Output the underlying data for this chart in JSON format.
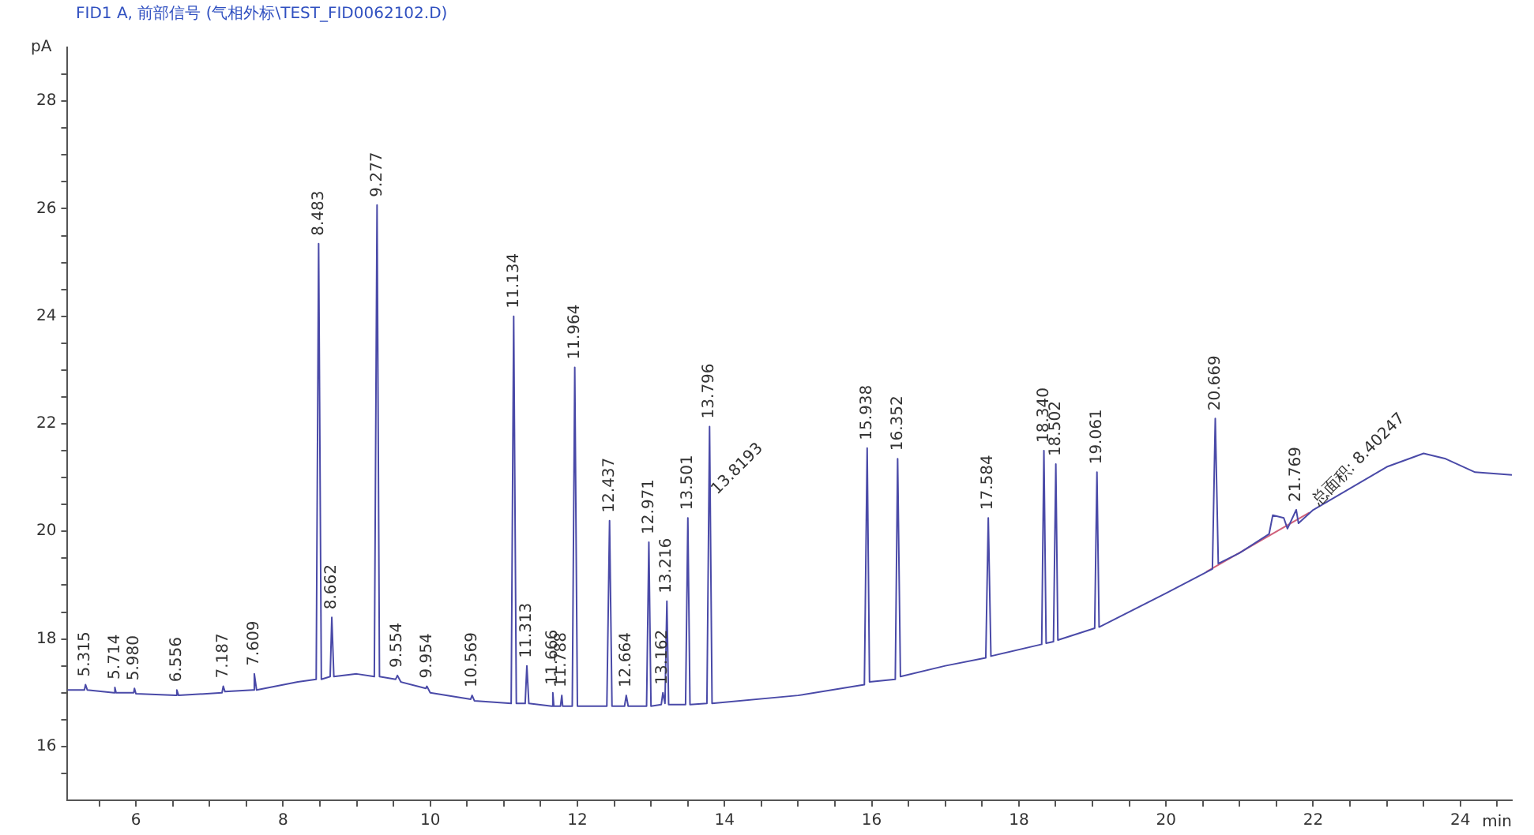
{
  "chart_data": {
    "type": "line",
    "title": "FID1 A, 前部信号 (气相外标\\TEST_FID0062102.D)",
    "ylabel": "pA",
    "xlabel": "min",
    "xlim": [
      5.07,
      24.7
    ],
    "ylim": [
      15,
      29
    ],
    "xticks": [
      {
        "value": 5.5,
        "label": null
      },
      6,
      {
        "value": 6.5,
        "label": null
      },
      {
        "value": 7,
        "label": null
      },
      {
        "value": 7.5,
        "label": null
      },
      8,
      {
        "value": 8.5,
        "label": null
      },
      {
        "value": 9,
        "label": null
      },
      {
        "value": 9.5,
        "label": null
      },
      10,
      {
        "value": 10.5,
        "label": null
      },
      {
        "value": 11,
        "label": null
      },
      {
        "value": 11.5,
        "label": null
      },
      12,
      {
        "value": 12.5,
        "label": null
      },
      {
        "value": 13,
        "label": null
      },
      {
        "value": 13.5,
        "label": null
      },
      14,
      {
        "value": 14.5,
        "label": null
      },
      {
        "value": 15,
        "label": null
      },
      {
        "value": 15.5,
        "label": null
      },
      16,
      {
        "value": 16.5,
        "label": null
      },
      {
        "value": 17,
        "label": null
      },
      {
        "value": 17.5,
        "label": null
      },
      18,
      {
        "value": 18.5,
        "label": null
      },
      {
        "value": 19,
        "label": null
      },
      {
        "value": 19.5,
        "label": null
      },
      20,
      {
        "value": 20.5,
        "label": null
      },
      {
        "value": 21,
        "label": null
      },
      {
        "value": 21.5,
        "label": null
      },
      22,
      {
        "value": 22.5,
        "label": null
      },
      {
        "value": 23,
        "label": null
      },
      {
        "value": 23.5,
        "label": null
      },
      24,
      {
        "value": 24.5,
        "label": null
      }
    ],
    "yticks": [
      {
        "value": 15.5,
        "label": null
      },
      16,
      {
        "value": 16.5,
        "label": null
      },
      {
        "value": 17,
        "label": null
      },
      {
        "value": 17.5,
        "label": null
      },
      18,
      {
        "value": 18.5,
        "label": null
      },
      {
        "value": 19,
        "label": null
      },
      {
        "value": 19.5,
        "label": null
      },
      20,
      {
        "value": 20.5,
        "label": null
      },
      {
        "value": 21,
        "label": null
      },
      {
        "value": 21.5,
        "label": null
      },
      22,
      {
        "value": 22.5,
        "label": null
      },
      {
        "value": 23,
        "label": null
      },
      {
        "value": 23.5,
        "label": null
      },
      24,
      {
        "value": 24.5,
        "label": null
      },
      {
        "value": 25,
        "label": null
      },
      {
        "value": 25.5,
        "label": null
      },
      26,
      {
        "value": 26.5,
        "label": null
      },
      {
        "value": 27,
        "label": null
      },
      {
        "value": 27.5,
        "label": null
      },
      28,
      {
        "value": 28.5,
        "label": null
      }
    ],
    "grid": false,
    "legend": false,
    "marker": "none",
    "line_style": "solid",
    "series": [
      {
        "color": "#4a4aa8",
        "x": [
          5.07,
          5.3,
          5.315,
          5.34,
          5.7,
          5.714,
          5.73,
          5.97,
          5.98,
          6.0,
          6.54,
          6.556,
          6.58,
          7.17,
          7.187,
          7.21,
          7.59,
          7.609,
          7.64,
          8.2,
          8.45,
          8.483,
          8.52,
          8.64,
          8.662,
          8.69,
          9.0,
          9.24,
          9.277,
          9.31,
          9.53,
          9.554,
          9.6,
          9.94,
          9.954,
          10.0,
          10.55,
          10.569,
          10.6,
          11.1,
          11.134,
          11.17,
          11.29,
          11.313,
          11.34,
          11.65,
          11.666,
          11.68,
          11.77,
          11.788,
          11.8,
          11.93,
          11.964,
          12.0,
          12.4,
          12.437,
          12.47,
          12.64,
          12.664,
          12.69,
          12.94,
          12.971,
          13.0,
          13.14,
          13.162,
          13.19,
          13.216,
          13.24,
          13.47,
          13.501,
          13.53,
          13.76,
          13.796,
          13.83,
          15.0,
          15.9,
          15.938,
          15.97,
          16.32,
          16.352,
          16.39,
          17.0,
          17.55,
          17.584,
          17.62,
          18.31,
          18.34,
          18.37,
          18.47,
          18.502,
          18.53,
          19.03,
          19.061,
          19.09,
          20.0,
          20.63,
          20.669,
          20.71,
          21.0,
          21.4,
          21.45,
          21.6,
          21.65,
          21.769,
          21.8,
          22.0,
          22.5,
          23.0,
          23.5,
          23.8,
          24.2,
          24.7
        ],
        "values": [
          17.05,
          17.05,
          17.15,
          17.05,
          17.0,
          17.1,
          17.0,
          17.0,
          17.08,
          16.98,
          16.95,
          17.05,
          16.95,
          17.0,
          17.12,
          17.02,
          17.05,
          17.35,
          17.05,
          17.2,
          17.25,
          25.35,
          17.25,
          17.3,
          18.4,
          17.3,
          17.35,
          17.3,
          26.07,
          17.3,
          17.25,
          17.32,
          17.2,
          17.08,
          17.12,
          17.0,
          16.88,
          16.95,
          16.85,
          16.8,
          24.0,
          16.8,
          16.8,
          17.5,
          16.8,
          16.75,
          17.0,
          16.75,
          16.75,
          16.95,
          16.75,
          16.75,
          23.05,
          16.75,
          16.75,
          20.2,
          16.75,
          16.75,
          16.95,
          16.75,
          16.75,
          19.8,
          16.75,
          16.78,
          17.0,
          16.8,
          18.7,
          16.78,
          16.78,
          20.25,
          16.78,
          16.8,
          21.95,
          16.8,
          16.95,
          17.15,
          21.55,
          17.2,
          17.25,
          21.35,
          17.3,
          17.5,
          17.65,
          20.25,
          17.68,
          17.9,
          21.5,
          17.92,
          17.95,
          21.25,
          17.98,
          18.2,
          21.1,
          18.22,
          18.85,
          19.3,
          22.1,
          19.4,
          19.6,
          19.95,
          20.3,
          20.25,
          20.05,
          20.4,
          20.15,
          20.4,
          20.8,
          21.2,
          21.45,
          21.35,
          21.1,
          21.05
        ]
      },
      {
        "color": "#d0607a",
        "x": [
          20.55,
          21.95
        ],
        "values": [
          19.25,
          20.35
        ]
      }
    ],
    "annotations": [
      {
        "text": "5.315",
        "x": 5.315,
        "y": 17.15
      },
      {
        "text": "5.714",
        "x": 5.714,
        "y": 17.1
      },
      {
        "text": "5.980",
        "x": 5.98,
        "y": 17.08
      },
      {
        "text": "6.556",
        "x": 6.556,
        "y": 17.05
      },
      {
        "text": "7.187",
        "x": 7.187,
        "y": 17.12
      },
      {
        "text": "7.609",
        "x": 7.609,
        "y": 17.35
      },
      {
        "text": "8.483",
        "x": 8.483,
        "y": 25.35
      },
      {
        "text": "8.662",
        "x": 8.662,
        "y": 18.4
      },
      {
        "text": "9.277",
        "x": 9.277,
        "y": 26.07
      },
      {
        "text": "9.554",
        "x": 9.554,
        "y": 17.32
      },
      {
        "text": "9.954",
        "x": 9.954,
        "y": 17.12
      },
      {
        "text": "10.569",
        "x": 10.569,
        "y": 16.95
      },
      {
        "text": "11.134",
        "x": 11.134,
        "y": 24.0
      },
      {
        "text": "11.313",
        "x": 11.313,
        "y": 17.5
      },
      {
        "text": "11.666",
        "x": 11.666,
        "y": 17.0
      },
      {
        "text": "11.788",
        "x": 11.788,
        "y": 16.95
      },
      {
        "text": "11.964",
        "x": 11.964,
        "y": 23.05
      },
      {
        "text": "12.437",
        "x": 12.437,
        "y": 20.2
      },
      {
        "text": "12.664",
        "x": 12.664,
        "y": 16.95
      },
      {
        "text": "12.971",
        "x": 12.971,
        "y": 19.8
      },
      {
        "text": "13.162",
        "x": 13.162,
        "y": 17.0
      },
      {
        "text": "13.216",
        "x": 13.216,
        "y": 18.7
      },
      {
        "text": "13.501",
        "x": 13.501,
        "y": 20.25
      },
      {
        "text": "13.796",
        "x": 13.796,
        "y": 21.95
      },
      {
        "text": "13.8193",
        "x": 13.83,
        "y": 20.6
      },
      {
        "text": "15.938",
        "x": 15.938,
        "y": 21.55
      },
      {
        "text": "16.352",
        "x": 16.352,
        "y": 21.35
      },
      {
        "text": "17.584",
        "x": 17.584,
        "y": 20.25
      },
      {
        "text": "18.340",
        "x": 18.34,
        "y": 21.5
      },
      {
        "text": "18.502",
        "x": 18.502,
        "y": 21.25
      },
      {
        "text": "19.061",
        "x": 19.061,
        "y": 21.1
      },
      {
        "text": "20.669",
        "x": 20.669,
        "y": 22.1
      },
      {
        "text": "21.769",
        "x": 21.769,
        "y": 20.4
      },
      {
        "text": "总面积: 8.40247",
        "x": 22.0,
        "y": 20.4
      }
    ]
  }
}
